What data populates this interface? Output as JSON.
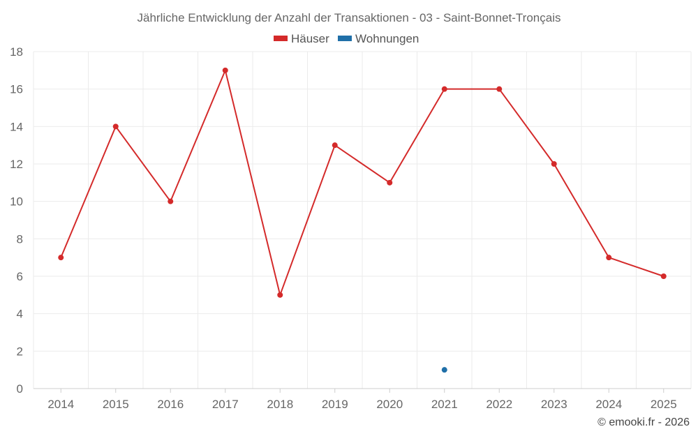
{
  "chart_data": {
    "type": "line",
    "title": "Jährliche Entwicklung der Anzahl der Transaktionen - 03 - Saint-Bonnet-Tronçais",
    "categories": [
      "2014",
      "2015",
      "2016",
      "2017",
      "2018",
      "2019",
      "2020",
      "2021",
      "2022",
      "2023",
      "2024",
      "2025"
    ],
    "series": [
      {
        "name": "Häuser",
        "color": "#d42a2a",
        "values": [
          7,
          14,
          10,
          17,
          5,
          13,
          11,
          16,
          16,
          12,
          7,
          6
        ]
      },
      {
        "name": "Wohnungen",
        "color": "#1f6fa8",
        "values": [
          null,
          null,
          null,
          null,
          null,
          null,
          null,
          1,
          null,
          null,
          null,
          null
        ]
      }
    ],
    "ylim": [
      0,
      18
    ],
    "yticks": [
      0,
      2,
      4,
      6,
      8,
      10,
      12,
      14,
      16,
      18
    ],
    "xlabel": "",
    "ylabel": "",
    "grid": true,
    "legend_position": "top-center"
  },
  "credit": "© emooki.fr - 2026"
}
